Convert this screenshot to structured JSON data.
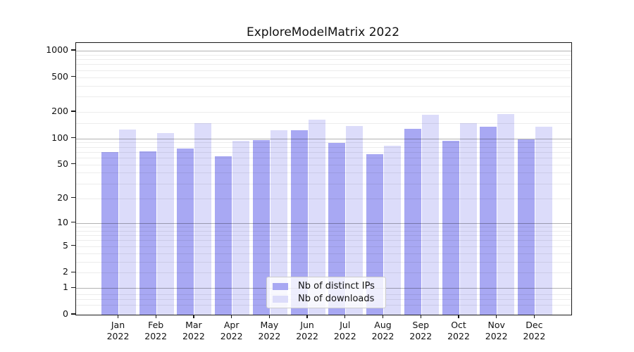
{
  "title": "ExploreModelMatrix 2022",
  "colors": {
    "distinct_ips": "#a8a8f3",
    "downloads": "#dcdcfa",
    "grid_minor": "#ededed",
    "grid_major": "#b3b3b3",
    "spine": "#1a1a1a",
    "legend_border": "#cccccc"
  },
  "legend": {
    "items": [
      {
        "label": "Nb of distinct IPs",
        "color": "#a8a8f3"
      },
      {
        "label": "Nb of downloads",
        "color": "#dcdcfa"
      }
    ]
  },
  "x_axis": {
    "months": [
      {
        "month": "Jan",
        "year": "2022"
      },
      {
        "month": "Feb",
        "year": "2022"
      },
      {
        "month": "Mar",
        "year": "2022"
      },
      {
        "month": "Apr",
        "year": "2022"
      },
      {
        "month": "May",
        "year": "2022"
      },
      {
        "month": "Jun",
        "year": "2022"
      },
      {
        "month": "Jul",
        "year": "2022"
      },
      {
        "month": "Aug",
        "year": "2022"
      },
      {
        "month": "Sep",
        "year": "2022"
      },
      {
        "month": "Oct",
        "year": "2022"
      },
      {
        "month": "Nov",
        "year": "2022"
      },
      {
        "month": "Dec",
        "year": "2022"
      }
    ]
  },
  "y_axis": {
    "tick_labels": [
      "1000",
      "500",
      "200",
      "100",
      "50",
      "20",
      "10",
      "5",
      "2",
      "1",
      "0"
    ],
    "tick_values": [
      1000,
      500,
      200,
      100,
      50,
      20,
      10,
      5,
      2,
      1,
      0
    ]
  },
  "chart_data": {
    "type": "bar",
    "title": "ExploreModelMatrix 2022",
    "categories": [
      "Jan 2022",
      "Feb 2022",
      "Mar 2022",
      "Apr 2022",
      "May 2022",
      "Jun 2022",
      "Jul 2022",
      "Aug 2022",
      "Sep 2022",
      "Oct 2022",
      "Nov 2022",
      "Dec 2022"
    ],
    "series": [
      {
        "name": "Nb of distinct IPs",
        "color": "#a8a8f3",
        "values": [
          70,
          71,
          76,
          62,
          95,
          124,
          89,
          66,
          128,
          93,
          136,
          98
        ]
      },
      {
        "name": "Nb of downloads",
        "color": "#dcdcfa",
        "values": [
          126,
          115,
          150,
          93,
          123,
          164,
          138,
          82,
          186,
          148,
          190,
          136
        ]
      }
    ],
    "xlabel": "",
    "ylabel": "",
    "yscale": "symlog-log1p",
    "ylim": [
      0,
      1230
    ],
    "yticks": [
      0,
      1,
      2,
      5,
      10,
      20,
      50,
      100,
      200,
      500,
      1000
    ],
    "yticks_major_grid": [
      1,
      10,
      100,
      1000
    ],
    "yticks_minor_grid": [
      0.3,
      0.5,
      0.7,
      2,
      3,
      4,
      5,
      6,
      7,
      8,
      9,
      20,
      30,
      40,
      50,
      60,
      70,
      80,
      90,
      150,
      200,
      300,
      400,
      500,
      600,
      700,
      800,
      900
    ],
    "grid": true,
    "legend_position": "lower center"
  }
}
